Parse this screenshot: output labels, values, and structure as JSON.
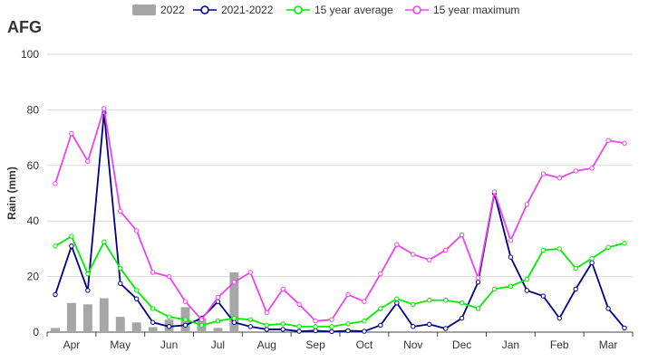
{
  "page": {
    "title": "AFG"
  },
  "legend": [
    {
      "name": "2022",
      "color": "#a6a6a6",
      "shape": "bar"
    },
    {
      "name": "2021-2022",
      "color": "#00008b",
      "shape": "line"
    },
    {
      "name": "15 year average",
      "color": "#00ee00",
      "shape": "line"
    },
    {
      "name": "15 year maximum",
      "color": "#ee44ee",
      "shape": "line"
    }
  ],
  "chart_data": {
    "type": "bar+line",
    "title": "AFG",
    "ylabel": "Rain (mm)",
    "xlabel": "",
    "ylim": [
      0,
      100
    ],
    "yticks": [
      0,
      20,
      40,
      60,
      80,
      100
    ],
    "grid": true,
    "legend_position": "top",
    "x_ticks": [
      "Apr",
      "May",
      "Jun",
      "Jul",
      "Aug",
      "Sep",
      "Oct",
      "Nov",
      "Dec",
      "Jan",
      "Feb",
      "Mar"
    ],
    "dekads_per_month": 3,
    "bars": {
      "name": "2022",
      "color": "#a6a6a6",
      "values": [
        1.5,
        10.5,
        10.0,
        12.2,
        5.5,
        3.5,
        1.8,
        4.5,
        9.0,
        5.0,
        1.5,
        21.5
      ]
    },
    "series": [
      {
        "name": "2021-2022",
        "color": "#00008b",
        "values": [
          13.5,
          31,
          15,
          79,
          17.5,
          12,
          3.5,
          2,
          2.5,
          5,
          11,
          3.5,
          2,
          1,
          1,
          0.3,
          0.5,
          0.2,
          0.5,
          0.3,
          2.5,
          10.5,
          2,
          2.8,
          1.3,
          5,
          18,
          50,
          27,
          15,
          13,
          5,
          15.5,
          25,
          8.5,
          1.5
        ]
      },
      {
        "name": "15 year average",
        "color": "#00ee00",
        "values": [
          31,
          34.5,
          21,
          32.5,
          23,
          15,
          8.5,
          5.5,
          4.5,
          2.5,
          4,
          5,
          4.5,
          2.5,
          3,
          2,
          2,
          2,
          3,
          4,
          8.5,
          12,
          10,
          11.5,
          11.5,
          10.5,
          8.5,
          15.5,
          16.5,
          19,
          29.5,
          30,
          23,
          26.5,
          30.5,
          32
        ]
      },
      {
        "name": "15 year maximum",
        "color": "#ee44ee",
        "values": [
          53.5,
          71.5,
          61.5,
          80.5,
          43.5,
          36.5,
          21.5,
          20,
          11,
          4.5,
          12.5,
          18,
          21.5,
          7,
          15.5,
          10,
          4,
          4.5,
          13.5,
          11,
          21,
          31.5,
          28,
          26,
          29.5,
          35,
          19.5,
          50.5,
          33,
          46,
          57,
          55.5,
          58,
          59,
          69,
          68
        ]
      }
    ]
  }
}
